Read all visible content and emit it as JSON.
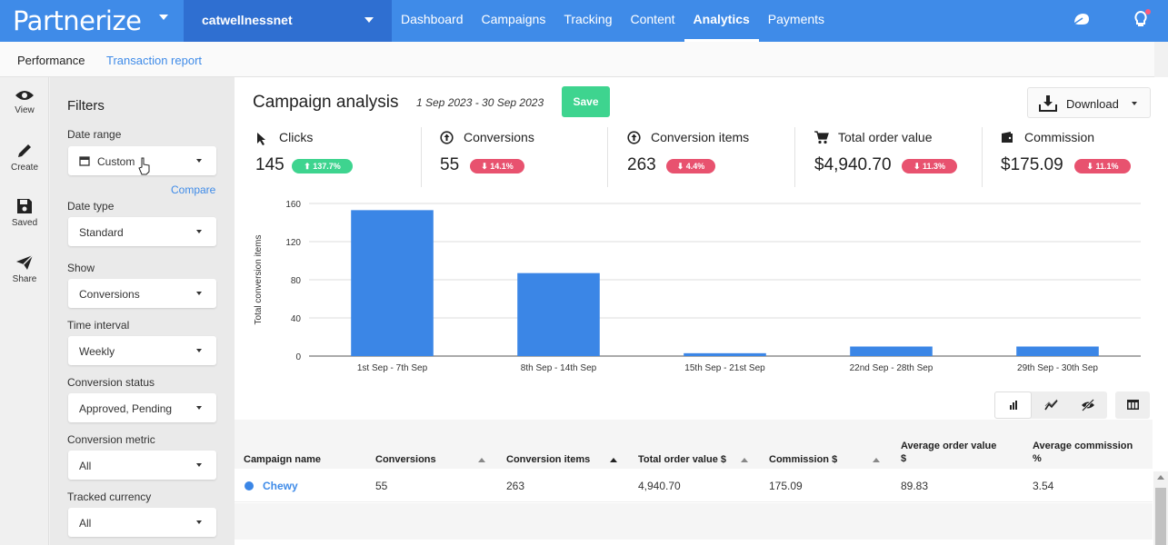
{
  "brand": {
    "logo": "Partnerize"
  },
  "account": {
    "name": "catwellnessnet"
  },
  "nav": [
    {
      "label": "Dashboard"
    },
    {
      "label": "Campaigns"
    },
    {
      "label": "Tracking"
    },
    {
      "label": "Content"
    },
    {
      "label": "Analytics"
    },
    {
      "label": "Payments"
    }
  ],
  "subnav": {
    "performance": "Performance",
    "transaction_report": "Transaction report"
  },
  "rail": [
    {
      "label": "View",
      "icon": "eye-icon"
    },
    {
      "label": "Create",
      "icon": "pencil-icon"
    },
    {
      "label": "Saved",
      "icon": "save-icon"
    },
    {
      "label": "Share",
      "icon": "send-icon"
    }
  ],
  "filters": {
    "title": "Filters",
    "compare": "Compare",
    "fields": [
      {
        "label": "Date range",
        "value": "Custom"
      },
      {
        "label": "Date type",
        "value": "Standard"
      },
      {
        "label": "Show",
        "value": "Conversions"
      },
      {
        "label": "Time interval",
        "value": "Weekly"
      },
      {
        "label": "Conversion status",
        "value": "Approved, Pending"
      },
      {
        "label": "Conversion metric",
        "value": "All"
      },
      {
        "label": "Tracked currency",
        "value": "All"
      }
    ]
  },
  "main": {
    "title": "Campaign analysis",
    "date_range": "1 Sep 2023 - 30 Sep 2023",
    "save_label": "Save",
    "download_label": "Download"
  },
  "kpis": [
    {
      "label": "Clicks",
      "value": "145",
      "change": "⬆ 137.7%",
      "direction": "up",
      "icon": "cursor-icon"
    },
    {
      "label": "Conversions",
      "value": "55",
      "change": "⬇ 14.1%",
      "direction": "down",
      "icon": "arrow-up-circle-icon"
    },
    {
      "label": "Conversion items",
      "value": "263",
      "change": "⬇ 4.4%",
      "direction": "down",
      "icon": "arrow-up-circle-icon"
    },
    {
      "label": "Total order value",
      "value": "$4,940.70",
      "change": "⬇ 11.3%",
      "direction": "down",
      "icon": "cart-icon"
    },
    {
      "label": "Commission",
      "value": "$175.09",
      "change": "⬇ 11.1%",
      "direction": "down",
      "icon": "wallet-icon"
    }
  ],
  "chart_data": {
    "type": "bar",
    "categories": [
      "1st Sep - 7th Sep",
      "8th Sep - 14th Sep",
      "15th Sep - 21st Sep",
      "22nd Sep - 28th Sep",
      "29th Sep - 30th Sep"
    ],
    "values": [
      153,
      87,
      3,
      10,
      10
    ],
    "xlabel": "",
    "ylabel": "Total conversion items",
    "ylim": [
      0,
      160
    ],
    "yticks": [
      0,
      40,
      80,
      120,
      160
    ],
    "grid": true,
    "color": "#3b86e6"
  },
  "table": {
    "headers": [
      "Campaign name",
      "Conversions",
      "Conversion items",
      "Total order value $",
      "Commission $",
      "Average order value $",
      "Average commission %"
    ],
    "rows": [
      {
        "name": "Chewy",
        "conversions": "55",
        "items": "263",
        "tov": "4,940.70",
        "commission": "175.09",
        "aov": "89.83",
        "avg_commission": "3.54"
      }
    ]
  },
  "colors": {
    "brand": "#3f8be8",
    "account_bg": "#2f6fd1",
    "save": "#3ed48f",
    "up": "#3ed48f",
    "down": "#e8526f",
    "link": "#3f8be8"
  }
}
